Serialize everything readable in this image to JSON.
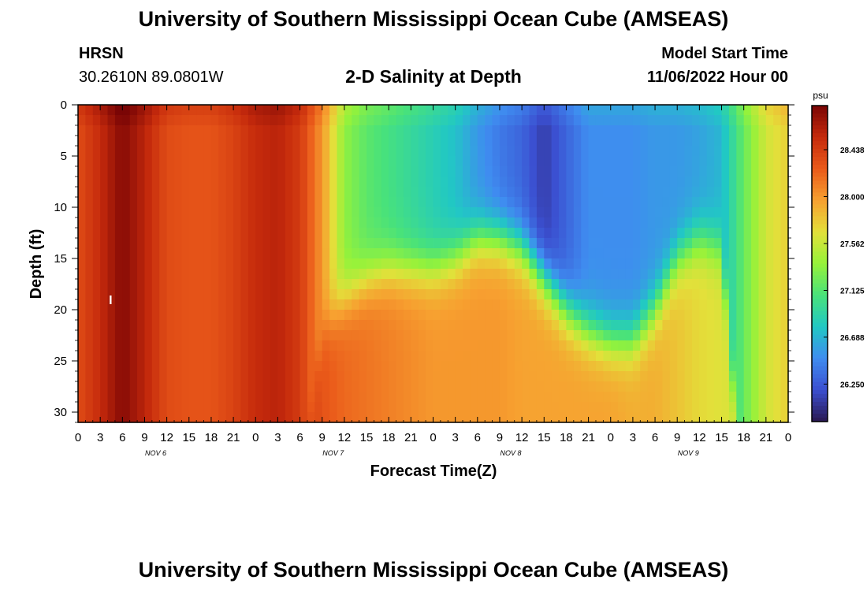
{
  "header": {
    "title": "University of Southern Mississippi Ocean Cube (AMSEAS)",
    "station": "HRSN",
    "coords": "30.2610N  89.0801W",
    "plot_title": "2-D Salinity at Depth",
    "start_label": "Model Start Time",
    "start_value": "11/06/2022 Hour 00"
  },
  "footer": {
    "title": "University of Southern Mississippi Ocean Cube (AMSEAS)"
  },
  "colors": {
    "scale": [
      "#2a1850",
      "#3b4fd0",
      "#3f8cf0",
      "#21c8c4",
      "#49e27a",
      "#96f23a",
      "#e3e03a",
      "#f7a030",
      "#ea5a1a",
      "#c52a0c",
      "#7a0505"
    ]
  },
  "chart_data": {
    "type": "heatmap",
    "title": "2-D Salinity at Depth",
    "xlabel": "Forecast Time(Z)",
    "ylabel": "Depth (ft)",
    "x_tick_labels": [
      "0",
      "3",
      "6",
      "9",
      "12",
      "15",
      "18",
      "21",
      "0",
      "3",
      "6",
      "9",
      "12",
      "15",
      "18",
      "21",
      "0",
      "3",
      "6",
      "9",
      "12",
      "15",
      "18",
      "21",
      "0",
      "3",
      "6",
      "9",
      "12",
      "15",
      "18",
      "21",
      "0"
    ],
    "x_range_hours": [
      0,
      96
    ],
    "day_labels": [
      {
        "label": "NOV 6",
        "hour": 9
      },
      {
        "label": "NOV 7",
        "hour": 33
      },
      {
        "label": "NOV 8",
        "hour": 57
      },
      {
        "label": "NOV 9",
        "hour": 81
      }
    ],
    "y_ticks": [
      0,
      5,
      10,
      15,
      20,
      25,
      30
    ],
    "ylim": [
      0,
      31
    ],
    "y_inverted": true,
    "colorbar": {
      "unit": "psu",
      "range": [
        25.9,
        28.85
      ],
      "tick_values": [
        28.438,
        28.0,
        27.562,
        27.125,
        26.688,
        26.25
      ],
      "tick_labels": [
        "28.438",
        "28.000",
        "27.562",
        "27.125",
        "26.688",
        "26.250"
      ]
    },
    "profile_hours": [
      0,
      3,
      6,
      9,
      12,
      15,
      18,
      21,
      24,
      27,
      30,
      33,
      36,
      39,
      42,
      45,
      48,
      51,
      54,
      57,
      60,
      63,
      66,
      69,
      72,
      75,
      78,
      81,
      84,
      87,
      90,
      93,
      96
    ],
    "surface_psu": [
      28.35,
      28.55,
      28.8,
      28.6,
      28.35,
      28.3,
      28.3,
      28.4,
      28.55,
      28.6,
      28.45,
      28.0,
      27.35,
      27.15,
      27.05,
      26.95,
      26.85,
      26.75,
      26.55,
      26.4,
      26.3,
      26.1,
      26.3,
      26.5,
      26.5,
      26.5,
      26.55,
      26.55,
      26.6,
      26.7,
      27.2,
      27.6,
      27.75
    ],
    "deep_psu": [
      28.45,
      28.6,
      28.85,
      28.65,
      28.5,
      28.45,
      28.4,
      28.5,
      28.65,
      28.75,
      28.55,
      28.3,
      28.2,
      28.15,
      28.1,
      28.05,
      28.0,
      28.0,
      28.0,
      28.0,
      27.95,
      27.95,
      27.95,
      27.95,
      27.95,
      27.9,
      27.9,
      27.8,
      27.7,
      27.65,
      27.6,
      27.65,
      27.7
    ],
    "mixed_layer_depth_ft": [
      40,
      40,
      40,
      40,
      40,
      40,
      40,
      40,
      40,
      40,
      40,
      22,
      19,
      17,
      16,
      16,
      16,
      15,
      13,
      13,
      14,
      17,
      20,
      22,
      23,
      23,
      20,
      15,
      13,
      14,
      40,
      40,
      40
    ],
    "marker": {
      "label": "I",
      "hour": 6,
      "depth_ft": 19
    }
  }
}
